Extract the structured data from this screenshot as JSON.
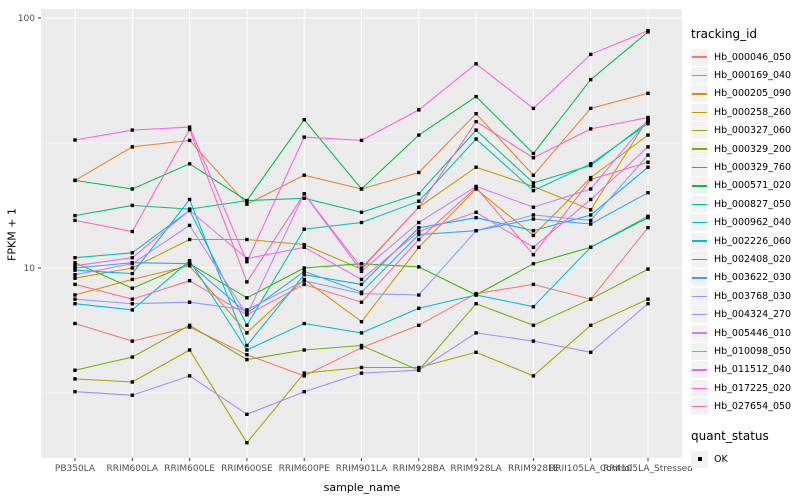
{
  "figure": {
    "x_axis_title": "sample_name",
    "y_axis_title": "FPKM + 1",
    "panel_bg": "#EBEBEB",
    "grid_color": "#FFFFFF",
    "tick_text_color": "#4D4D4D",
    "point_color": "#000000"
  },
  "legend": {
    "tracking_title": "tracking_id",
    "quant_title": "quant_status",
    "quant_items": [
      {
        "label": "OK",
        "marker": "black-square"
      }
    ]
  },
  "chart_data": {
    "type": "line",
    "title": "",
    "xlabel": "sample_name",
    "ylabel": "FPKM + 1",
    "y_scale": "log10",
    "ylim": [
      1.74,
      108
    ],
    "y_major_ticks": [
      10,
      100
    ],
    "y_minor_gridlines": [
      3.162,
      31.62
    ],
    "grid": true,
    "legend_position": "right",
    "point_shape": "filled-square",
    "categories": [
      "PB350LA",
      "RRIM600LA",
      "RRIM600LE",
      "RRIM600SE",
      "RRIM600PE",
      "RRIM901LA",
      "RRIM928BA",
      "RRIM928LA",
      "RRIM928LE",
      "RRII105LA_Control",
      "RRII105LA_Stressed"
    ],
    "series": [
      {
        "name": "Hb_000046_050",
        "color": "#F8766D",
        "values": [
          6.0,
          5.1,
          5.8,
          4.5,
          3.7,
          4.8,
          5.9,
          7.9,
          8.6,
          7.5,
          14.5
        ]
      },
      {
        "name": "Hb_000169_040",
        "color": "#EA8331",
        "values": [
          22.4,
          30.5,
          32.4,
          18.0,
          23.5,
          20.7,
          24.1,
          41.4,
          23.5,
          43.5,
          50.0
        ]
      },
      {
        "name": "Hb_000205_090",
        "color": "#D89000",
        "values": [
          7.8,
          9.0,
          10.2,
          5.5,
          9.0,
          6.1,
          12.1,
          20.7,
          13.5,
          23.0,
          34.0
        ]
      },
      {
        "name": "Hb_000258_260",
        "color": "#C09B00",
        "values": [
          9.1,
          10.0,
          13.0,
          13.0,
          12.4,
          9.9,
          17.5,
          25.3,
          21.2,
          17.1,
          39.6
        ]
      },
      {
        "name": "Hb_000327_060",
        "color": "#A3A500",
        "values": [
          3.6,
          3.5,
          4.7,
          2.0,
          3.8,
          4.0,
          4.0,
          4.6,
          3.7,
          5.9,
          7.5
        ]
      },
      {
        "name": "Hb_000329_200",
        "color": "#7CAE00",
        "values": [
          3.9,
          4.4,
          5.9,
          4.3,
          4.7,
          4.9,
          3.9,
          7.2,
          5.9,
          7.5,
          9.9
        ]
      },
      {
        "name": "Hb_000329_760",
        "color": "#39B600",
        "values": [
          10.5,
          8.3,
          10.4,
          7.6,
          10.0,
          10.4,
          10.1,
          7.8,
          10.4,
          12.1,
          15.9
        ]
      },
      {
        "name": "Hb_000571_020",
        "color": "#00BB4E",
        "values": [
          22.4,
          20.7,
          26.1,
          18.6,
          39.2,
          20.7,
          34.0,
          48.5,
          28.7,
          56.7,
          88.0
        ]
      },
      {
        "name": "Hb_000827_050",
        "color": "#00C087",
        "values": [
          16.2,
          17.8,
          17.2,
          18.6,
          19.0,
          16.7,
          19.8,
          35.6,
          21.9,
          25.7,
          38.5
        ]
      },
      {
        "name": "Hb_000962_040",
        "color": "#00C0B2",
        "values": [
          11.0,
          11.5,
          17.0,
          5.9,
          14.3,
          15.2,
          18.5,
          32.8,
          20.4,
          26.1,
          37.8
        ]
      },
      {
        "name": "Hb_002226_060",
        "color": "#00BCD8",
        "values": [
          7.2,
          6.8,
          10.7,
          4.7,
          6.0,
          5.5,
          6.9,
          7.8,
          7.0,
          12.1,
          16.1
        ]
      },
      {
        "name": "Hb_002408_020",
        "color": "#00B0F6",
        "values": [
          9.8,
          9.5,
          18.8,
          4.9,
          9.4,
          8.6,
          14.5,
          15.9,
          14.1,
          16.3,
          25.3
        ]
      },
      {
        "name": "Hb_003622_030",
        "color": "#35A2FF",
        "values": [
          10.0,
          10.5,
          10.4,
          6.6,
          9.7,
          8.0,
          13.6,
          14.1,
          15.7,
          15.0,
          20.0
        ]
      },
      {
        "name": "Hb_003768_030",
        "color": "#8B9AFF",
        "values": [
          7.5,
          7.2,
          7.3,
          6.8,
          8.9,
          7.9,
          7.8,
          14.1,
          16.3,
          15.5,
          28.3
        ]
      },
      {
        "name": "Hb_004324_270",
        "color": "#A58AFF",
        "values": [
          3.2,
          3.1,
          3.7,
          2.6,
          3.2,
          3.8,
          3.9,
          5.5,
          5.1,
          4.6,
          7.2
        ]
      },
      {
        "name": "Hb_005446_010",
        "color": "#C77CFF",
        "values": [
          9.4,
          10.4,
          14.8,
          6.5,
          19.8,
          9.7,
          15.2,
          21.2,
          17.5,
          20.7,
          39.0
        ]
      },
      {
        "name": "Hb_010098_050",
        "color": "#E76BF3",
        "values": [
          10.2,
          11.0,
          17.0,
          10.9,
          12.1,
          9.0,
          14.0,
          16.7,
          12.1,
          18.8,
          30.5
        ]
      },
      {
        "name": "Hb_011512_040",
        "color": "#FA62DB",
        "values": [
          32.5,
          35.6,
          36.6,
          10.6,
          33.4,
          32.4,
          42.9,
          65.6,
          43.5,
          71.5,
          89.0
        ]
      },
      {
        "name": "Hb_017225_020",
        "color": "#FF62BC",
        "values": [
          15.5,
          14.0,
          35.8,
          8.8,
          19.8,
          10.0,
          17.5,
          38.5,
          27.6,
          36.0,
          40.0
        ]
      },
      {
        "name": "Hb_027654_050",
        "color": "#FF6A98",
        "values": [
          8.6,
          7.5,
          8.9,
          6.5,
          8.6,
          7.3,
          13.0,
          21.0,
          11.3,
          22.6,
          26.5
        ]
      }
    ]
  }
}
